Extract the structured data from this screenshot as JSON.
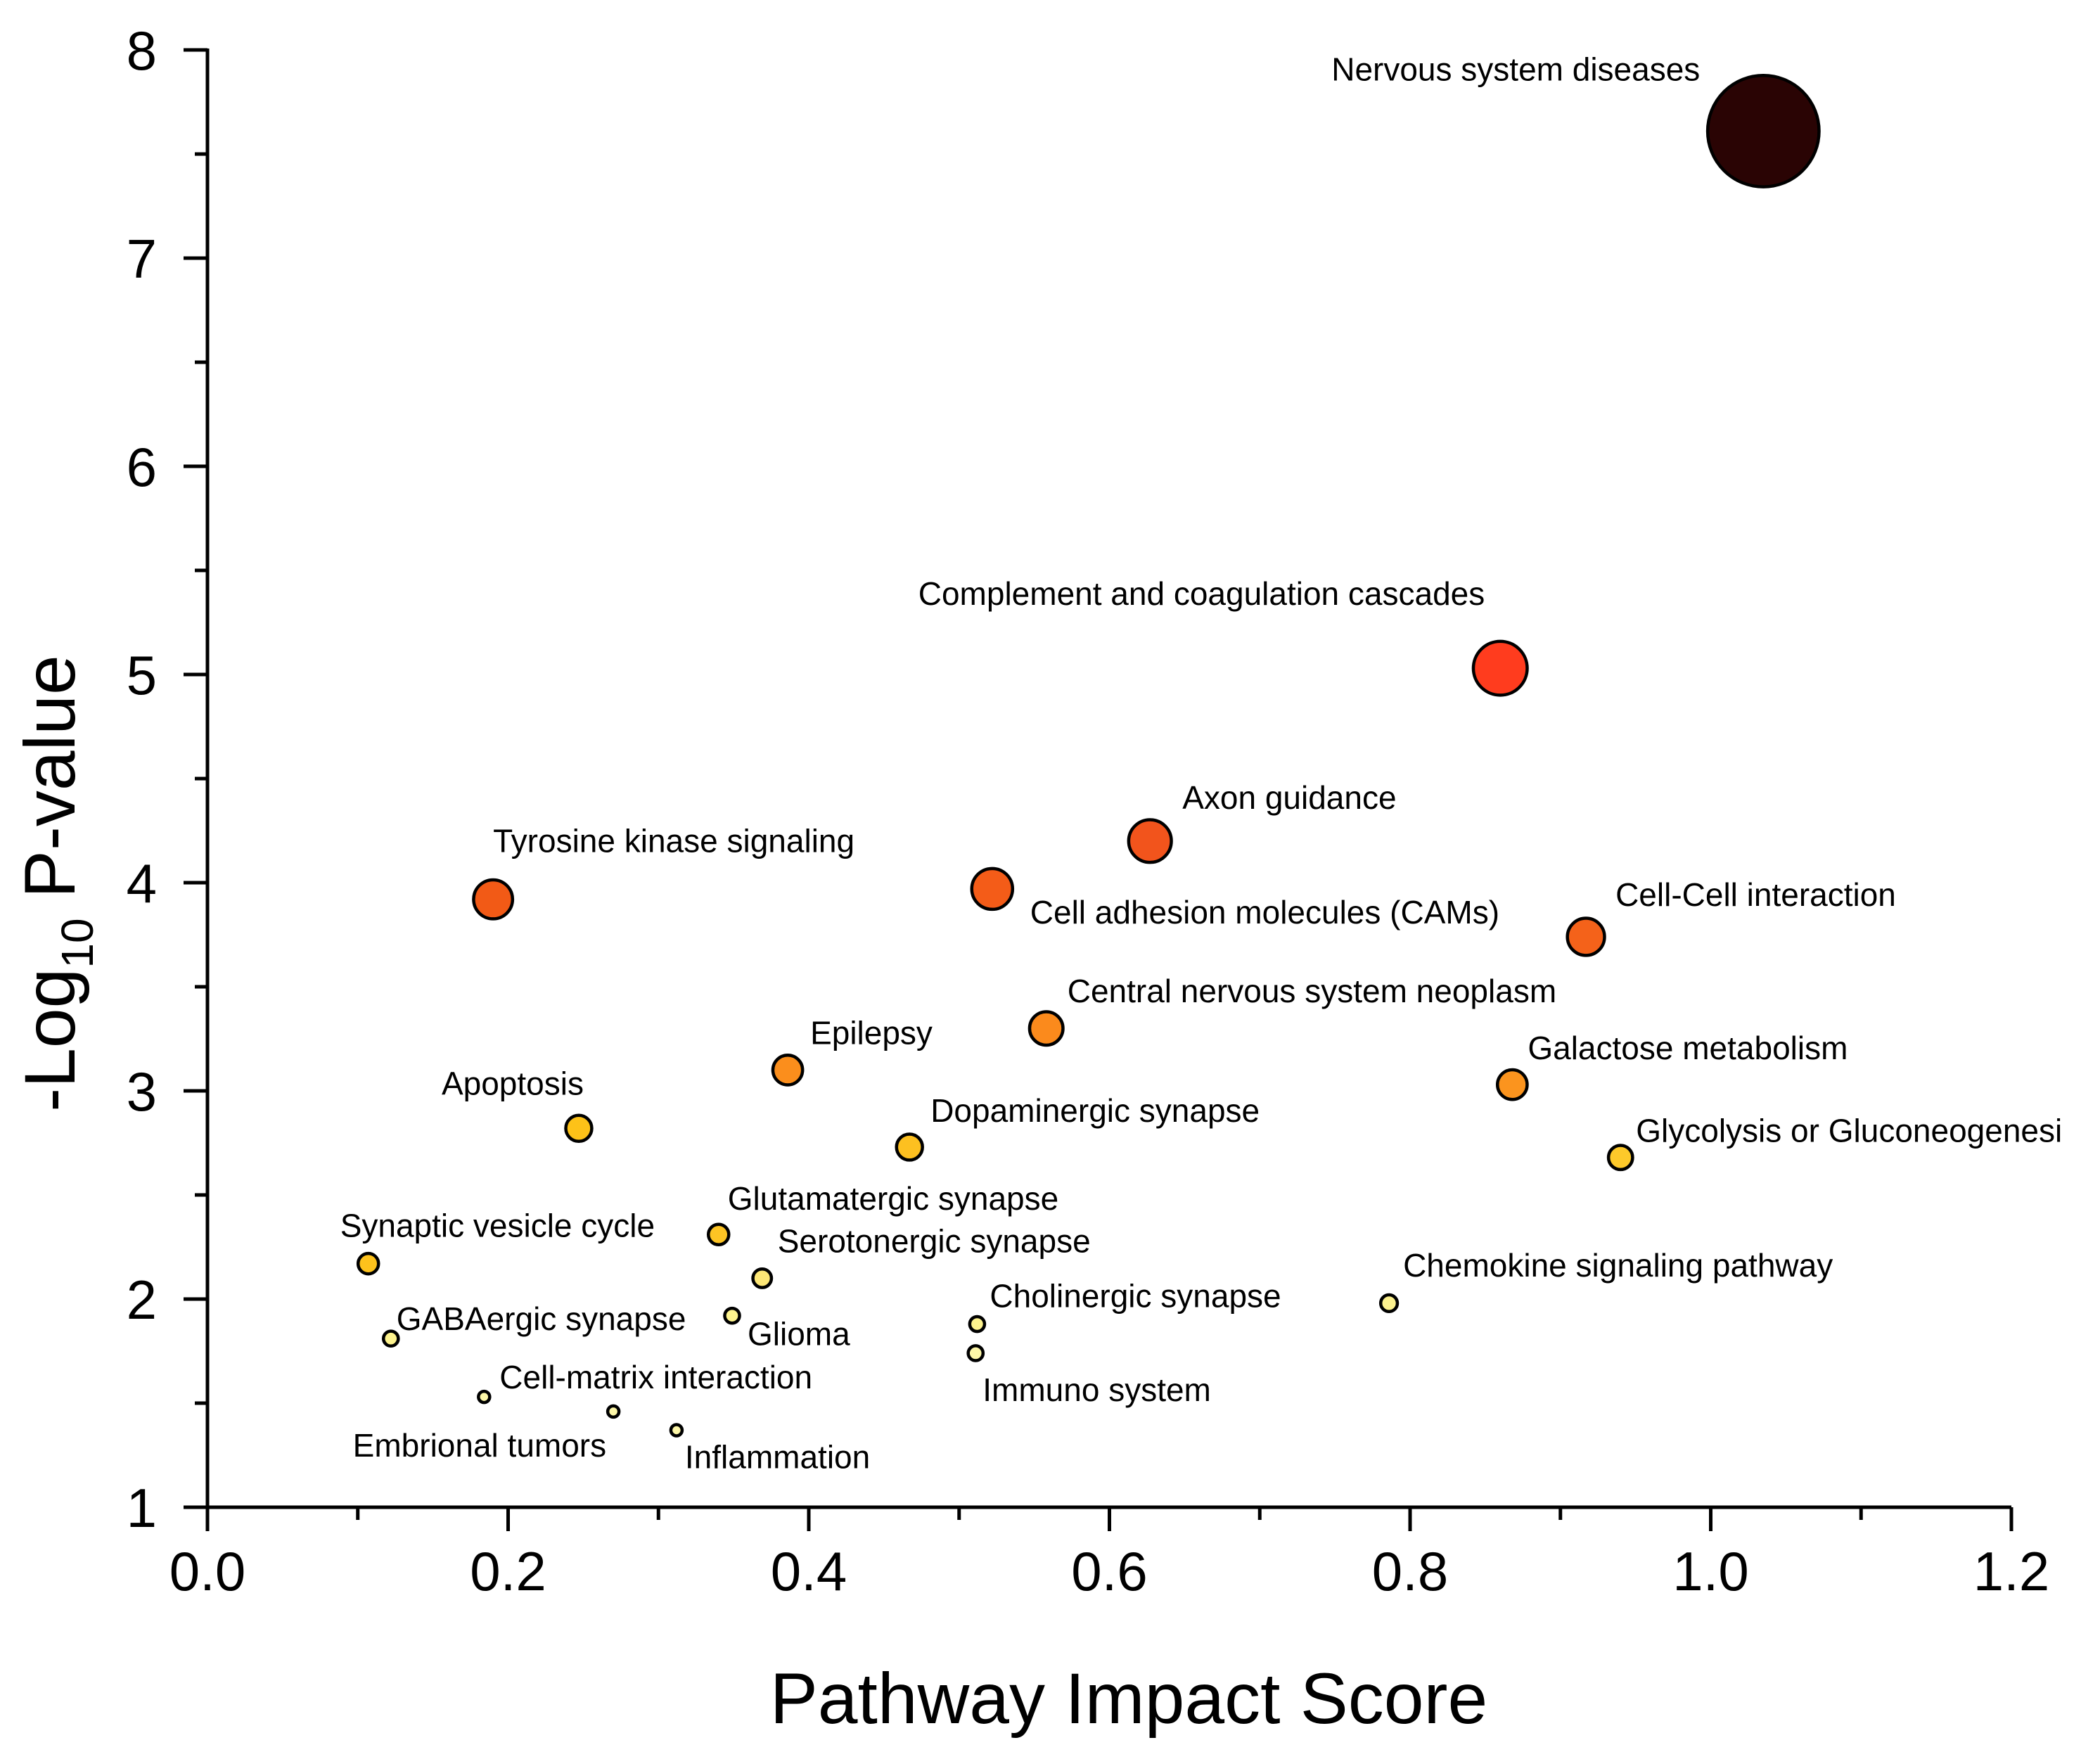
{
  "chart_data": {
    "type": "scatter",
    "xlabel": "Pathway Impact Score",
    "ylabel": {
      "prefix": "-Log",
      "subscript": "10",
      "suffix": " P-value"
    },
    "xlim": [
      0.0,
      1.2
    ],
    "ylim": [
      1,
      8
    ],
    "x_ticks": [
      "0.0",
      "0.2",
      "0.4",
      "0.6",
      "0.8",
      "1.0",
      "1.2"
    ],
    "y_ticks": [
      "1",
      "2",
      "3",
      "4",
      "5",
      "6",
      "7",
      "8"
    ],
    "grid": false,
    "legend": "none",
    "points": [
      {
        "label": "Nervous system diseases",
        "x": 1.035,
        "y": 7.61,
        "size": 60,
        "color": "#2a0404"
      },
      {
        "label": "Complement and coagulation cascades",
        "x": 0.86,
        "y": 5.03,
        "size": 29,
        "color": "#ff3c1e"
      },
      {
        "label": "Axon guidance",
        "x": 0.627,
        "y": 4.2,
        "size": 23,
        "color": "#f2541c"
      },
      {
        "label": "Tyrosine kinase signaling",
        "x": 0.19,
        "y": 3.92,
        "size": 21,
        "color": "#f25a16"
      },
      {
        "label": "Cell adhesion molecules (CAMs)",
        "x": 0.522,
        "y": 3.97,
        "size": 22,
        "color": "#f45c18"
      },
      {
        "label": "Cell-Cell interaction",
        "x": 0.917,
        "y": 3.74,
        "size": 20,
        "color": "#f4621a"
      },
      {
        "label": "Central nervous system neoplasm",
        "x": 0.558,
        "y": 3.3,
        "size": 18,
        "color": "#fb8a1c"
      },
      {
        "label": "Epilepsy",
        "x": 0.386,
        "y": 3.1,
        "size": 16,
        "color": "#fb8e1c"
      },
      {
        "label": "Galactose metabolism",
        "x": 0.868,
        "y": 3.03,
        "size": 16,
        "color": "#fb941e"
      },
      {
        "label": "Apoptosis",
        "x": 0.247,
        "y": 2.82,
        "size": 14,
        "color": "#fdc218"
      },
      {
        "label": "Dopaminergic synapse",
        "x": 0.467,
        "y": 2.73,
        "size": 14,
        "color": "#fdc020"
      },
      {
        "label": "Glycolysis or Gluconeogenesi",
        "x": 0.94,
        "y": 2.68,
        "size": 13,
        "color": "#fdc92a"
      },
      {
        "label": "Synaptic vesicle cycle",
        "x": 0.107,
        "y": 2.17,
        "size": 11,
        "color": "#fdc21c"
      },
      {
        "label": "Glutamatergic synapse",
        "x": 0.34,
        "y": 2.31,
        "size": 11,
        "color": "#fdc424"
      },
      {
        "label": "Serotonergic synapse",
        "x": 0.369,
        "y": 2.1,
        "size": 10,
        "color": "#fde776"
      },
      {
        "label": "Chemokine signaling pathway",
        "x": 0.786,
        "y": 1.98,
        "size": 9,
        "color": "#fdf28e"
      },
      {
        "label": "GABAergic synapse",
        "x": 0.122,
        "y": 1.81,
        "size": 8,
        "color": "#fdf38e"
      },
      {
        "label": "Glioma",
        "x": 0.349,
        "y": 1.92,
        "size": 8,
        "color": "#fdf38e"
      },
      {
        "label": "Cholinergic synapse",
        "x": 0.512,
        "y": 1.88,
        "size": 8,
        "color": "#fdf38e"
      },
      {
        "label": "Immuno system",
        "x": 0.511,
        "y": 1.74,
        "size": 8,
        "color": "#fdf7a8"
      },
      {
        "label": "Cell-matrix interaction",
        "x": 0.184,
        "y": 1.53,
        "size": 6,
        "color": "#fdf7a8"
      },
      {
        "label": "Embrional tumors",
        "x": 0.27,
        "y": 1.46,
        "size": 6,
        "color": "#fdf7a8"
      },
      {
        "label": "Inflammation",
        "x": 0.312,
        "y": 1.37,
        "size": 5,
        "color": "#fdf7a8"
      }
    ]
  }
}
